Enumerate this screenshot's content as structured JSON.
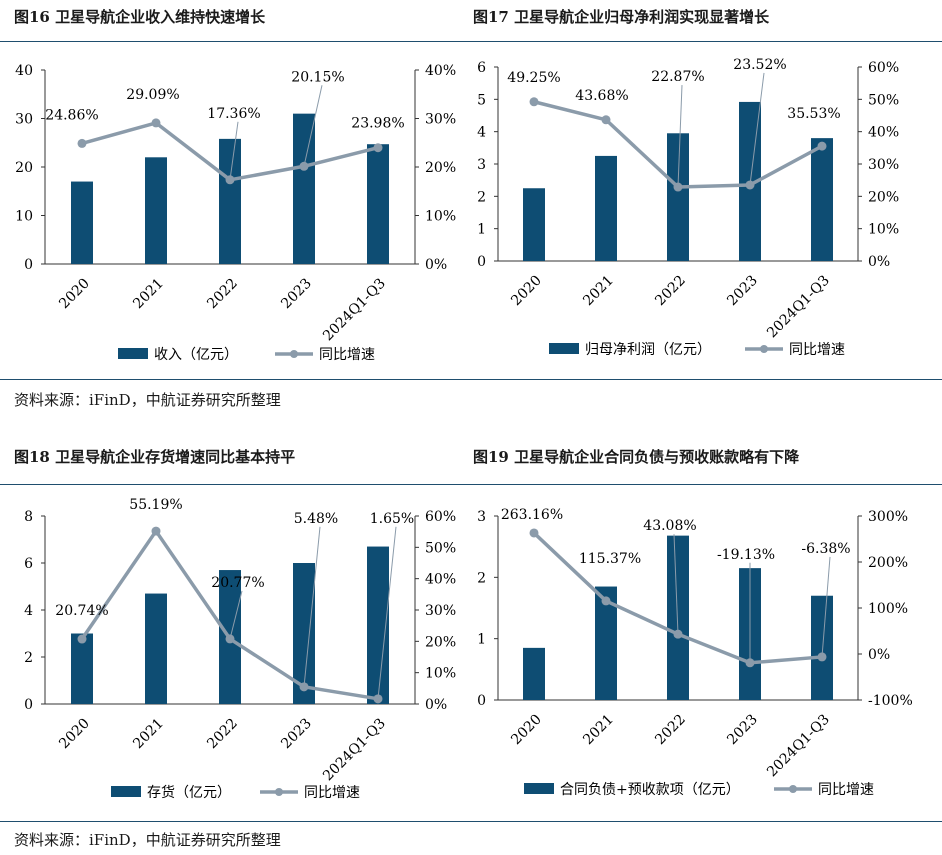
{
  "colors": {
    "bar": "#0e4d73",
    "line": "#8b9baa",
    "axis": "#333333",
    "rule": "#1f4e6e"
  },
  "sources": {
    "top": "资料来源：iFinD，中航证券研究所整理",
    "bottom": "资料来源：iFinD，中航证券研究所整理"
  },
  "chart_data": [
    {
      "type": "bar+line",
      "title": "图16  卫星导航企业收入维持快速增长",
      "categories": [
        "2020",
        "2021",
        "2022",
        "2023",
        "2024Q1-Q3"
      ],
      "bar": {
        "name": "收入（亿元）",
        "values": [
          17,
          22,
          25.8,
          31,
          24.7
        ]
      },
      "line": {
        "name": "同比增速",
        "values": [
          24.86,
          29.09,
          17.36,
          20.15,
          23.98
        ],
        "labels": [
          "24.86%",
          "29.09%",
          "17.36%",
          "20.15%",
          "23.98%"
        ]
      },
      "y_left": {
        "min": 0,
        "max": 40,
        "ticks": [
          "0",
          "10",
          "20",
          "30",
          "40"
        ]
      },
      "y_right": {
        "min": 0,
        "max": 40,
        "ticks": [
          "0%",
          "10%",
          "20%",
          "30%",
          "40%"
        ]
      }
    },
    {
      "type": "bar+line",
      "title": "图17  卫星导航企业归母净利润实现显著增长",
      "categories": [
        "2020",
        "2021",
        "2022",
        "2023",
        "2024Q1-Q3"
      ],
      "bar": {
        "name": "归母净利润（亿元）",
        "values": [
          2.25,
          3.25,
          3.95,
          4.92,
          3.8
        ]
      },
      "line": {
        "name": "同比增速",
        "values": [
          49.25,
          43.68,
          22.87,
          23.52,
          35.53
        ],
        "labels": [
          "49.25%",
          "43.68%",
          "22.87%",
          "23.52%",
          "35.53%"
        ]
      },
      "y_left": {
        "min": 0,
        "max": 6,
        "ticks": [
          "0",
          "1",
          "2",
          "3",
          "4",
          "5",
          "6"
        ]
      },
      "y_right": {
        "min": 0,
        "max": 60,
        "ticks": [
          "0%",
          "10%",
          "20%",
          "30%",
          "40%",
          "50%",
          "60%"
        ]
      }
    },
    {
      "type": "bar+line",
      "title": "图18  卫星导航企业存货增速同比基本持平",
      "categories": [
        "2020",
        "2021",
        "2022",
        "2023",
        "2024Q1-Q3"
      ],
      "bar": {
        "name": "存货（亿元）",
        "values": [
          3.0,
          4.7,
          5.7,
          6.0,
          6.7
        ]
      },
      "line": {
        "name": "同比增速",
        "values": [
          20.74,
          55.19,
          20.77,
          5.48,
          1.65
        ],
        "labels": [
          "20.74%",
          "55.19%",
          "20.77%",
          "5.48%",
          "1.65%"
        ]
      },
      "y_left": {
        "min": 0,
        "max": 8,
        "ticks": [
          "0",
          "2",
          "4",
          "6",
          "8"
        ]
      },
      "y_right": {
        "min": 0,
        "max": 60,
        "ticks": [
          "0%",
          "10%",
          "20%",
          "30%",
          "40%",
          "50%",
          "60%"
        ]
      }
    },
    {
      "type": "bar+line",
      "title": "图19  卫星导航企业合同负债与预收账款略有下降",
      "categories": [
        "2020",
        "2021",
        "2022",
        "2023",
        "2024Q1-Q3"
      ],
      "bar": {
        "name": "合同负债+预收款项（亿元）",
        "values": [
          0.85,
          1.85,
          2.68,
          2.15,
          1.7
        ]
      },
      "line": {
        "name": "同比增速",
        "values": [
          263.16,
          115.37,
          43.08,
          -19.13,
          -6.38
        ],
        "labels": [
          "263.16%",
          "115.37%",
          "43.08%",
          "-19.13%",
          "-6.38%"
        ]
      },
      "y_left": {
        "min": 0,
        "max": 3,
        "ticks": [
          "0",
          "1",
          "2",
          "3"
        ]
      },
      "y_right": {
        "min": -100,
        "max": 300,
        "ticks": [
          "-100%",
          "0%",
          "100%",
          "200%",
          "300%"
        ]
      }
    }
  ]
}
